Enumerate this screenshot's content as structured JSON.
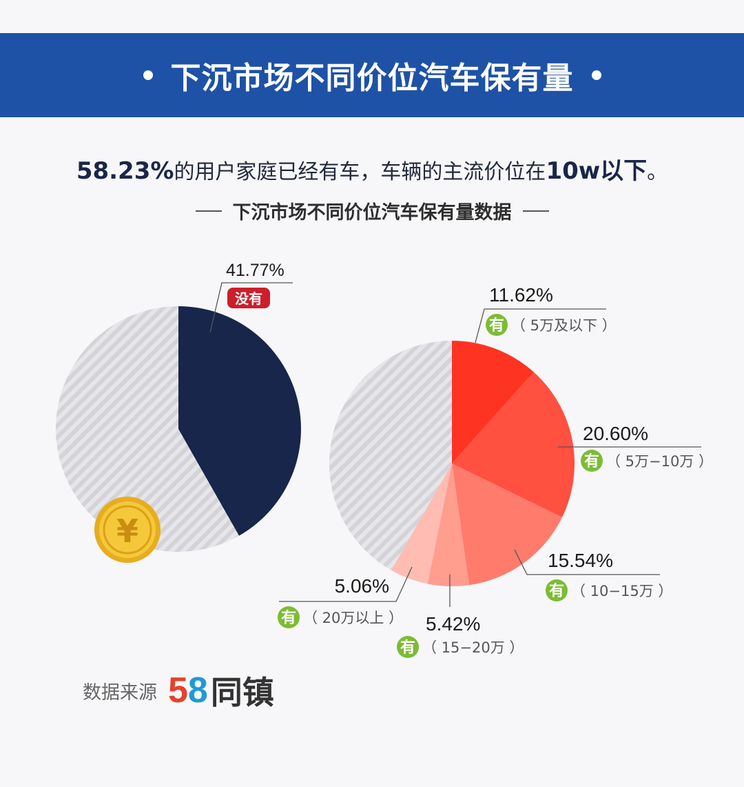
{
  "banner": {
    "title": "下沉市场不同价位汽车保有量"
  },
  "headline": {
    "pct": "58.23%",
    "text_mid": "的用户家庭已经有车，车辆的主流价位在",
    "value": "10w以下",
    "text_end": "。"
  },
  "subtitle": "下沉市场不同价位汽车保有量数据",
  "source": {
    "label": "数据来源",
    "logo_5": "5",
    "logo_8": "8",
    "logo_name": "同镇"
  },
  "colors": {
    "banner": "#1e52a6",
    "navy": "#17264a",
    "badge_red": "#cc1f2a",
    "badge_green": "#7cbc33",
    "coin": "#f2c233"
  },
  "chart_data": [
    {
      "type": "pie",
      "title": "",
      "slices": [
        {
          "label": "41.77%",
          "value": 41.77,
          "tag": "没有",
          "color": "#17264a"
        },
        {
          "label": "",
          "value": 58.23,
          "tag": "",
          "color": "striped-gray"
        }
      ]
    },
    {
      "type": "pie",
      "title": "",
      "slices": [
        {
          "label": "11.62%",
          "value": 11.62,
          "tag": "有",
          "range": "（ 5万及以下 ）",
          "color": "#ff3322"
        },
        {
          "label": "20.60%",
          "value": 20.6,
          "tag": "有",
          "range": "（ 5万−10万 ）",
          "color": "#ff5040"
        },
        {
          "label": "15.54%",
          "value": 15.54,
          "tag": "有",
          "range": "（ 10−15万 ）",
          "color": "#ff7b6c"
        },
        {
          "label": "5.42%",
          "value": 5.42,
          "tag": "有",
          "range": "（ 15−20万 ）",
          "color": "#ff9d8f"
        },
        {
          "label": "5.06%",
          "value": 5.06,
          "tag": "有",
          "range": "（ 20万以上 ）",
          "color": "#ffbcb3"
        },
        {
          "label": "",
          "value": 41.76,
          "tag": "",
          "range": "",
          "color": "striped-gray"
        }
      ]
    }
  ]
}
